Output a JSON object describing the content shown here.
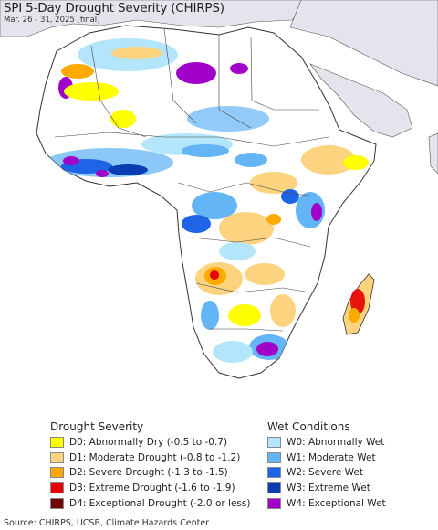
{
  "header": {
    "title": "SPI 5-Day Drought Severity (CHIRPS)",
    "subtitle": "Mar. 26 - 31, 2025 [final]"
  },
  "colors": {
    "ocean": "#ffffff",
    "land_outside": "#e4e4ec",
    "africa_base": "#ffffff",
    "border": "#333333",
    "D0": "#ffff00",
    "D1": "#fcd37f",
    "D2": "#ffaa00",
    "D3": "#e60000",
    "D4": "#730000",
    "W0": "#b3e5fc",
    "W1": "#64b5f6",
    "W2": "#1e64e6",
    "W3": "#0a3cb4",
    "W4": "#a000c8"
  },
  "legend": {
    "drought": {
      "heading": "Drought Severity",
      "items": [
        {
          "code": "D0",
          "label": "D0: Abnormally Dry (-0.5 to -0.7)"
        },
        {
          "code": "D1",
          "label": "D1: Moderate Drought (-0.8 to -1.2)"
        },
        {
          "code": "D2",
          "label": "D2: Severe Drought (-1.3 to -1.5)"
        },
        {
          "code": "D3",
          "label": "D3: Extreme Drought (-1.6 to -1.9)"
        },
        {
          "code": "D4",
          "label": "D4: Exceptional Drought (-2.0 or less)"
        }
      ]
    },
    "wet": {
      "heading": "Wet Conditions",
      "items": [
        {
          "code": "W0",
          "label": "W0: Abnormally Wet"
        },
        {
          "code": "W1",
          "label": "W1: Moderate Wet"
        },
        {
          "code": "W2",
          "label": "W2: Severe Wet"
        },
        {
          "code": "W3",
          "label": "W3: Extreme Wet"
        },
        {
          "code": "W4",
          "label": "W4: Exceptional Wet"
        }
      ]
    }
  },
  "footer": {
    "source": "Source: CHIRPS, UCSB, Climate Hazards Center"
  }
}
